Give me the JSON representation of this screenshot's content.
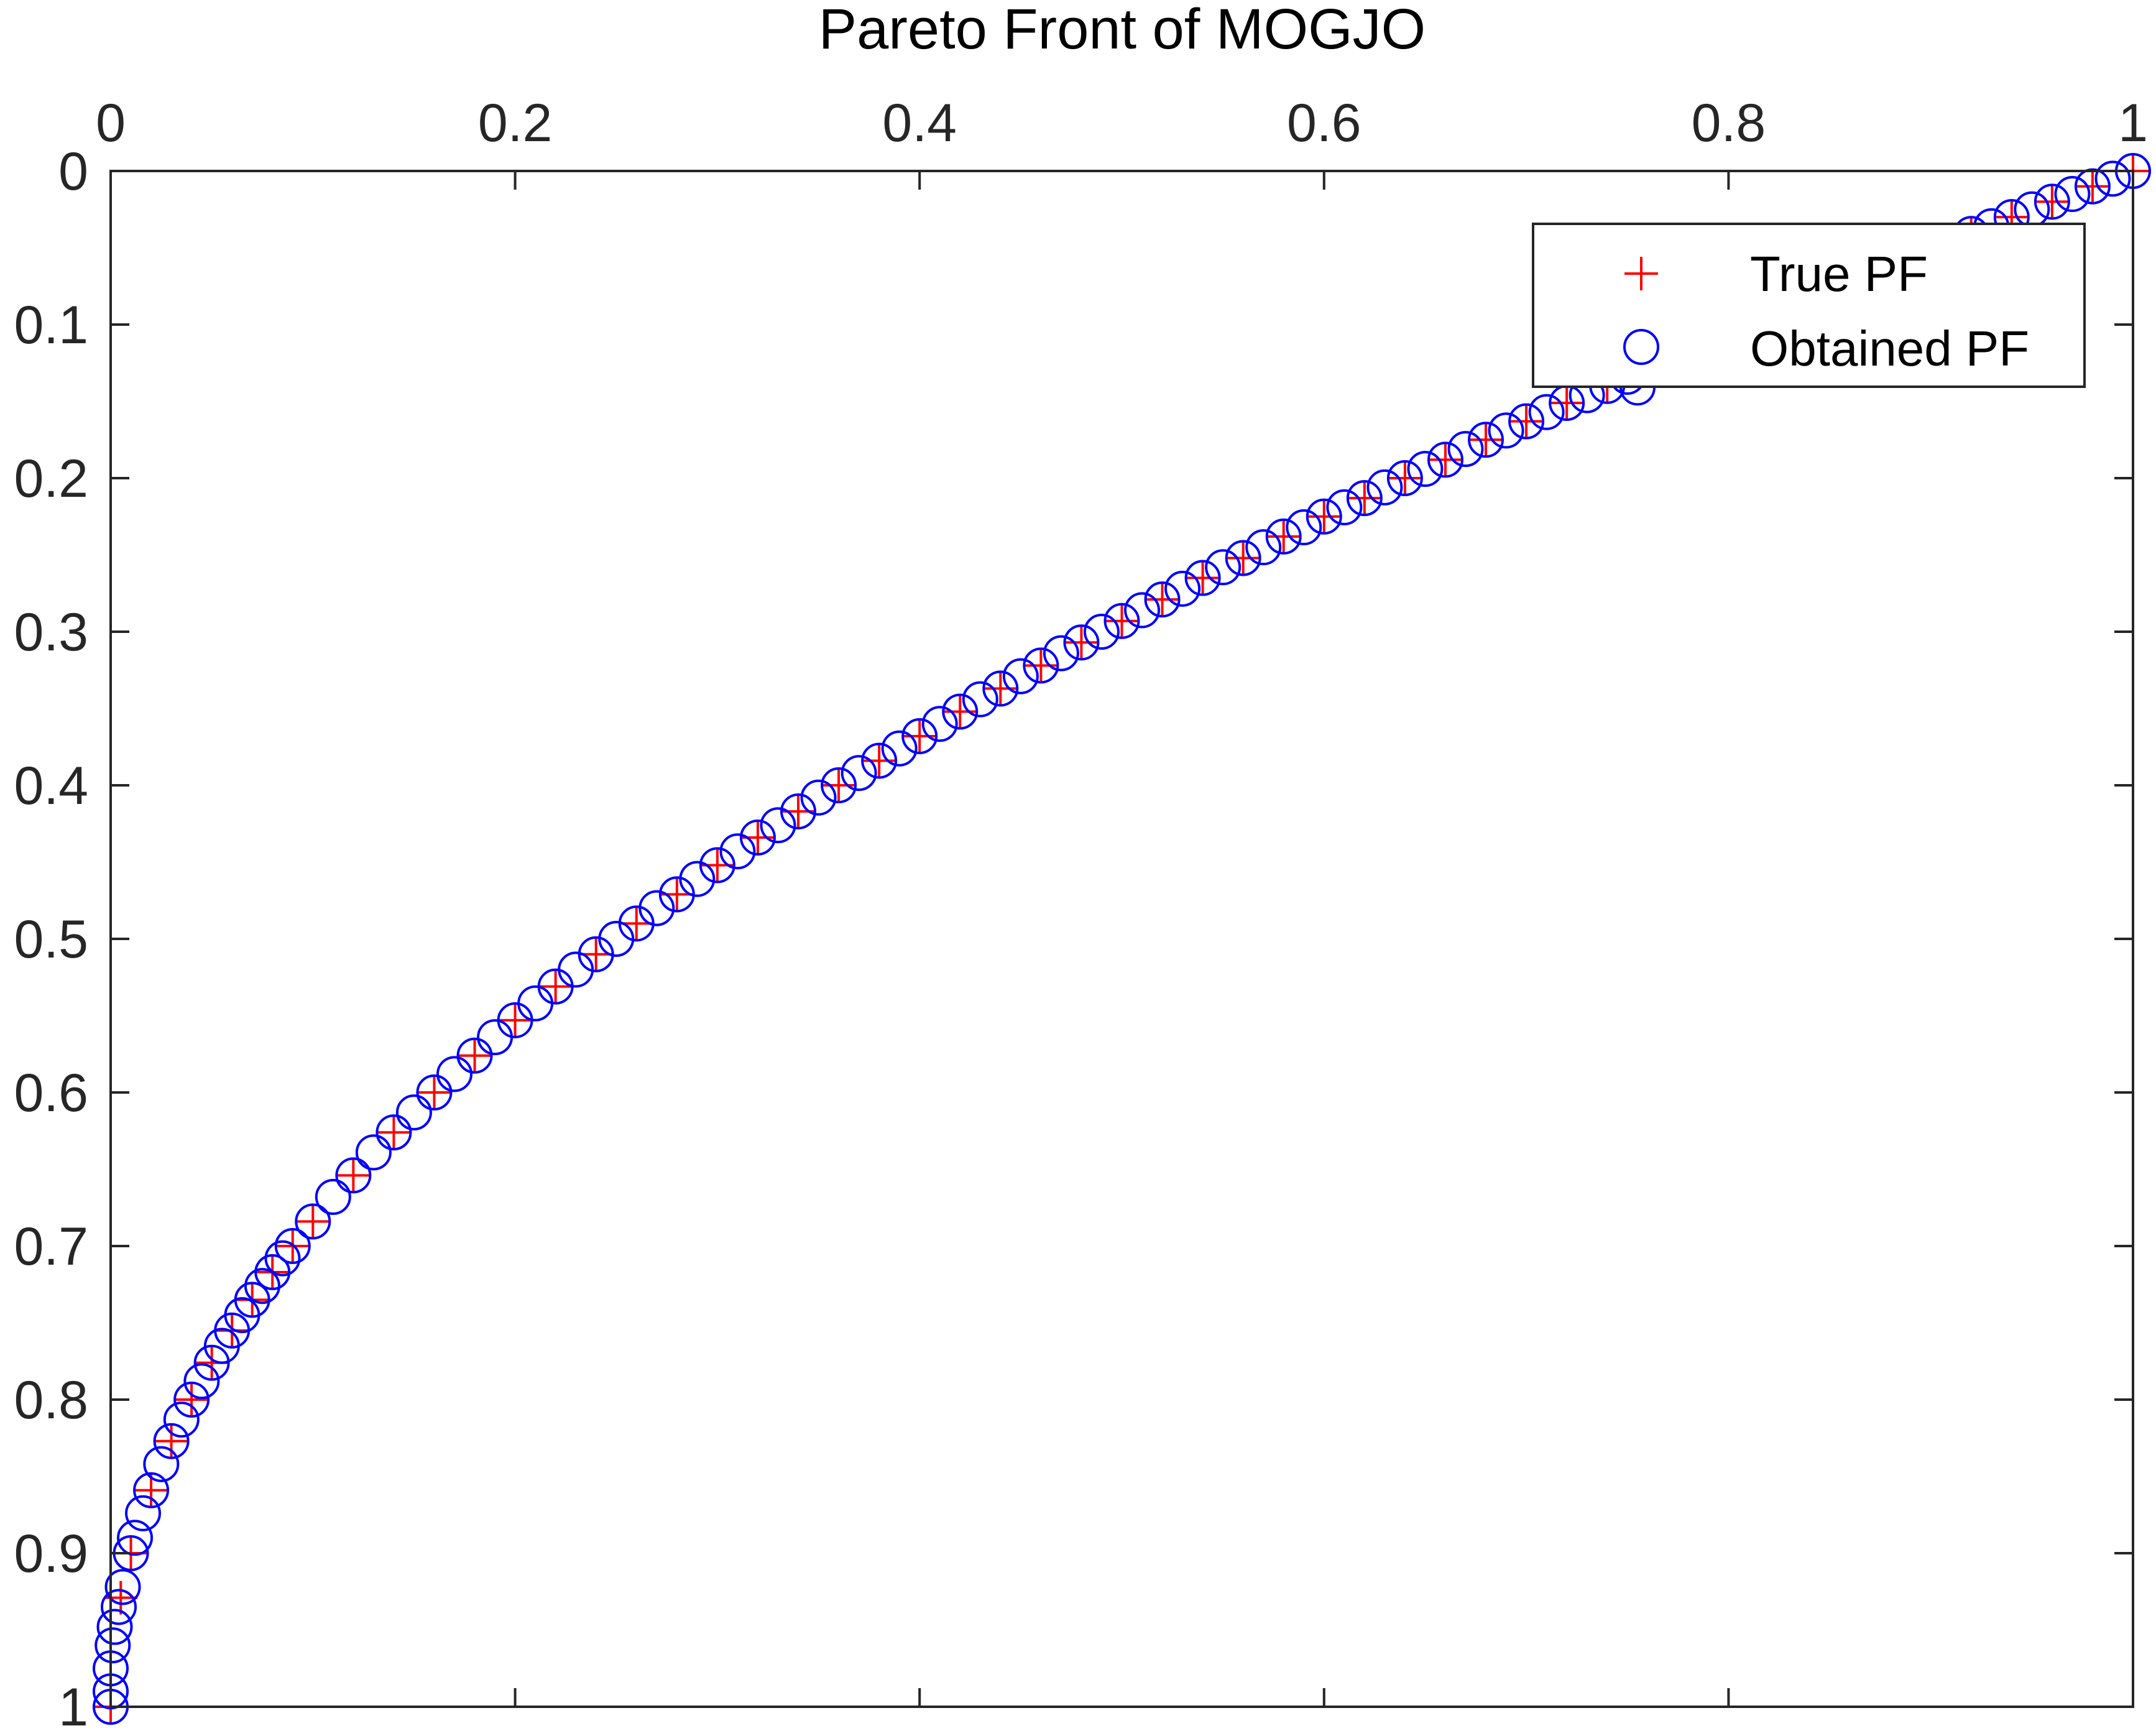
{
  "colors": {
    "true_pf": "#ff0000",
    "obtained_pf": "#0000ff",
    "axis": "#262626",
    "background": "#ffffff"
  },
  "chart_data": {
    "type": "scatter",
    "title": "Pareto Front of MOGJO",
    "xlabel": "",
    "ylabel": "",
    "xlim": [
      0,
      1
    ],
    "ylim": [
      0,
      1
    ],
    "x_axis_location": "top",
    "y_axis_direction": "reversed",
    "grid": false,
    "xticks": [
      "0",
      "0.2",
      "0.4",
      "0.6",
      "0.8",
      "1"
    ],
    "yticks": [
      "0",
      "0.1",
      "0.2",
      "0.3",
      "0.4",
      "0.5",
      "0.6",
      "0.7",
      "0.8",
      "0.9",
      "1"
    ],
    "legend": {
      "placement": "top-right",
      "entries": [
        {
          "label": "True PF",
          "marker": "plus",
          "color": "#ff0000"
        },
        {
          "label": "Obtained PF",
          "marker": "circle",
          "color": "#0000ff"
        }
      ]
    },
    "series": [
      {
        "name": "True PF",
        "marker": "plus",
        "color": "#ff0000",
        "points": [
          [
            0.0,
            1.0
          ],
          [
            0.005,
            0.929
          ],
          [
            0.01,
            0.9
          ],
          [
            0.02,
            0.859
          ],
          [
            0.03,
            0.827
          ],
          [
            0.04,
            0.8
          ],
          [
            0.05,
            0.776
          ],
          [
            0.06,
            0.755
          ],
          [
            0.07,
            0.735
          ],
          [
            0.08,
            0.717
          ],
          [
            0.09,
            0.7
          ],
          [
            0.1,
            0.684
          ],
          [
            0.12,
            0.654
          ],
          [
            0.14,
            0.626
          ],
          [
            0.16,
            0.6
          ],
          [
            0.18,
            0.576
          ],
          [
            0.2,
            0.553
          ],
          [
            0.22,
            0.531
          ],
          [
            0.24,
            0.51
          ],
          [
            0.26,
            0.49
          ],
          [
            0.28,
            0.471
          ],
          [
            0.3,
            0.452
          ],
          [
            0.32,
            0.434
          ],
          [
            0.34,
            0.417
          ],
          [
            0.36,
            0.4
          ],
          [
            0.38,
            0.384
          ],
          [
            0.4,
            0.368
          ],
          [
            0.42,
            0.352
          ],
          [
            0.44,
            0.337
          ],
          [
            0.46,
            0.322
          ],
          [
            0.48,
            0.307
          ],
          [
            0.5,
            0.293
          ],
          [
            0.52,
            0.279
          ],
          [
            0.54,
            0.265
          ],
          [
            0.56,
            0.252
          ],
          [
            0.58,
            0.238
          ],
          [
            0.6,
            0.225
          ],
          [
            0.62,
            0.213
          ],
          [
            0.64,
            0.2
          ],
          [
            0.66,
            0.188
          ],
          [
            0.68,
            0.175
          ],
          [
            0.7,
            0.163
          ],
          [
            0.72,
            0.151
          ],
          [
            0.74,
            0.14
          ],
          [
            0.76,
            0.128
          ],
          [
            0.78,
            0.117
          ],
          [
            0.8,
            0.106
          ],
          [
            0.82,
            0.094
          ],
          [
            0.84,
            0.083
          ],
          [
            0.86,
            0.073
          ],
          [
            0.88,
            0.062
          ],
          [
            0.9,
            0.051
          ],
          [
            0.92,
            0.041
          ],
          [
            0.94,
            0.03
          ],
          [
            0.96,
            0.02
          ],
          [
            0.98,
            0.01
          ],
          [
            1.0,
            0.0
          ]
        ]
      },
      {
        "name": "Obtained PF",
        "marker": "circle",
        "color": "#0000ff",
        "points": [
          [
            0.0,
            1.0
          ],
          [
            0.0,
            0.99
          ],
          [
            0.0,
            0.975
          ],
          [
            0.001,
            0.96
          ],
          [
            0.002,
            0.948
          ],
          [
            0.004,
            0.935
          ],
          [
            0.006,
            0.922
          ],
          [
            0.01,
            0.9
          ],
          [
            0.012,
            0.89
          ],
          [
            0.016,
            0.874
          ],
          [
            0.02,
            0.859
          ],
          [
            0.025,
            0.842
          ],
          [
            0.03,
            0.827
          ],
          [
            0.035,
            0.813
          ],
          [
            0.04,
            0.8
          ],
          [
            0.045,
            0.788
          ],
          [
            0.05,
            0.776
          ],
          [
            0.055,
            0.765
          ],
          [
            0.06,
            0.755
          ],
          [
            0.065,
            0.745
          ],
          [
            0.07,
            0.735
          ],
          [
            0.075,
            0.726
          ],
          [
            0.08,
            0.717
          ],
          [
            0.085,
            0.708
          ],
          [
            0.09,
            0.7
          ],
          [
            0.1,
            0.684
          ],
          [
            0.11,
            0.668
          ],
          [
            0.12,
            0.654
          ],
          [
            0.13,
            0.639
          ],
          [
            0.14,
            0.626
          ],
          [
            0.15,
            0.613
          ],
          [
            0.16,
            0.6
          ],
          [
            0.17,
            0.588
          ],
          [
            0.18,
            0.576
          ],
          [
            0.19,
            0.564
          ],
          [
            0.2,
            0.553
          ],
          [
            0.21,
            0.542
          ],
          [
            0.22,
            0.531
          ],
          [
            0.23,
            0.52
          ],
          [
            0.24,
            0.51
          ],
          [
            0.25,
            0.5
          ],
          [
            0.26,
            0.49
          ],
          [
            0.27,
            0.48
          ],
          [
            0.28,
            0.471
          ],
          [
            0.29,
            0.461
          ],
          [
            0.3,
            0.452
          ],
          [
            0.31,
            0.443
          ],
          [
            0.32,
            0.434
          ],
          [
            0.33,
            0.426
          ],
          [
            0.34,
            0.417
          ],
          [
            0.35,
            0.408
          ],
          [
            0.36,
            0.4
          ],
          [
            0.37,
            0.392
          ],
          [
            0.38,
            0.384
          ],
          [
            0.39,
            0.376
          ],
          [
            0.4,
            0.368
          ],
          [
            0.41,
            0.36
          ],
          [
            0.42,
            0.352
          ],
          [
            0.43,
            0.344
          ],
          [
            0.44,
            0.337
          ],
          [
            0.45,
            0.329
          ],
          [
            0.46,
            0.322
          ],
          [
            0.47,
            0.314
          ],
          [
            0.48,
            0.307
          ],
          [
            0.49,
            0.3
          ],
          [
            0.5,
            0.293
          ],
          [
            0.51,
            0.286
          ],
          [
            0.52,
            0.279
          ],
          [
            0.53,
            0.272
          ],
          [
            0.54,
            0.265
          ],
          [
            0.55,
            0.258
          ],
          [
            0.56,
            0.252
          ],
          [
            0.57,
            0.245
          ],
          [
            0.58,
            0.238
          ],
          [
            0.59,
            0.232
          ],
          [
            0.6,
            0.225
          ],
          [
            0.61,
            0.219
          ],
          [
            0.62,
            0.213
          ],
          [
            0.63,
            0.206
          ],
          [
            0.64,
            0.2
          ],
          [
            0.65,
            0.194
          ],
          [
            0.66,
            0.188
          ],
          [
            0.67,
            0.181
          ],
          [
            0.68,
            0.175
          ],
          [
            0.69,
            0.169
          ],
          [
            0.7,
            0.163
          ],
          [
            0.71,
            0.157
          ],
          [
            0.72,
            0.151
          ],
          [
            0.73,
            0.146
          ],
          [
            0.74,
            0.14
          ],
          [
            0.75,
            0.134
          ],
          [
            0.755,
            0.141
          ],
          [
            0.91,
            0.046
          ],
          [
            0.92,
            0.041
          ],
          [
            0.93,
            0.036
          ],
          [
            0.94,
            0.03
          ],
          [
            0.95,
            0.025
          ],
          [
            0.96,
            0.02
          ],
          [
            0.97,
            0.015
          ],
          [
            0.98,
            0.01
          ],
          [
            0.99,
            0.005
          ],
          [
            1.0,
            0.0
          ]
        ]
      }
    ]
  }
}
